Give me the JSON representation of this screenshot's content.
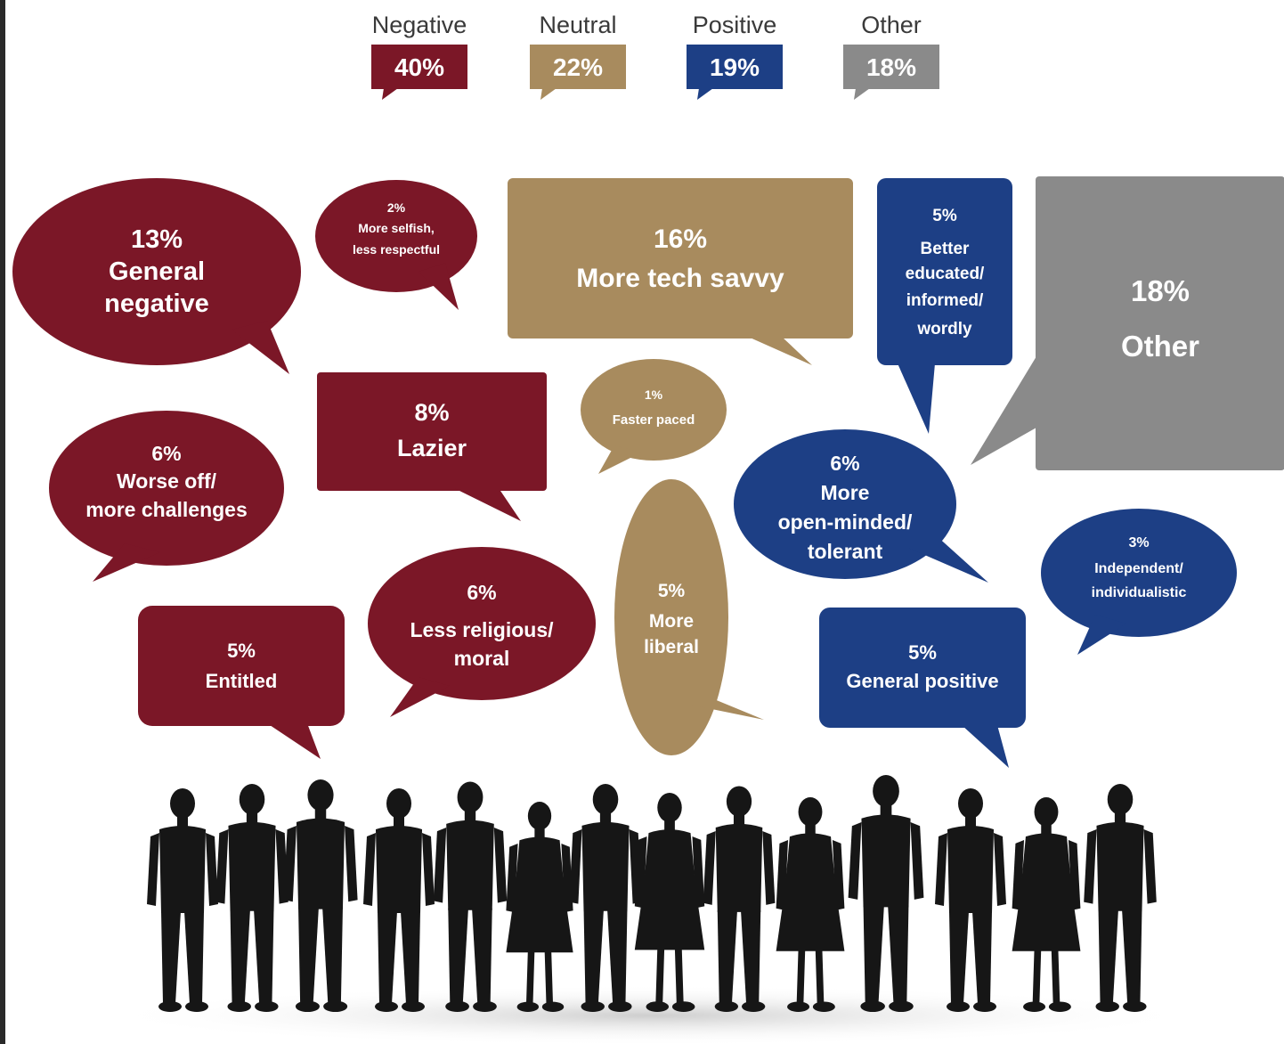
{
  "chart_data": {
    "type": "bubble-infographic",
    "categories": [
      {
        "name": "Negative",
        "value": "40%",
        "color": "#7b1727"
      },
      {
        "name": "Neutral",
        "value": "22%",
        "color": "#a88b5e"
      },
      {
        "name": "Positive",
        "value": "19%",
        "color": "#1d3f85"
      },
      {
        "name": "Other",
        "value": "18%",
        "color": "#8a8a8a"
      }
    ],
    "bubbles": [
      {
        "id": "general-negative",
        "category": "Negative",
        "percent": "13%",
        "lines": [
          "13%",
          "General",
          "negative"
        ]
      },
      {
        "id": "more-selfish",
        "category": "Negative",
        "percent": "2%",
        "lines": [
          "2%",
          "More selfish,",
          "less respectful"
        ]
      },
      {
        "id": "more-tech-savvy",
        "category": "Neutral",
        "percent": "16%",
        "lines": [
          "16%",
          "More tech savvy"
        ]
      },
      {
        "id": "better-educated",
        "category": "Positive",
        "percent": "5%",
        "lines": [
          "5%",
          "Better",
          "educated/",
          "informed/",
          "wordly"
        ]
      },
      {
        "id": "other",
        "category": "Other",
        "percent": "18%",
        "lines": [
          "18%",
          "Other"
        ]
      },
      {
        "id": "lazier",
        "category": "Negative",
        "percent": "8%",
        "lines": [
          "8%",
          "Lazier"
        ]
      },
      {
        "id": "faster-paced",
        "category": "Neutral",
        "percent": "1%",
        "lines": [
          "1%",
          "Faster paced"
        ]
      },
      {
        "id": "worse-off",
        "category": "Negative",
        "percent": "6%",
        "lines": [
          "6%",
          "Worse off/",
          "more challenges"
        ]
      },
      {
        "id": "open-minded",
        "category": "Positive",
        "percent": "6%",
        "lines": [
          "6%",
          "More",
          "open-minded/",
          "tolerant"
        ]
      },
      {
        "id": "independent",
        "category": "Positive",
        "percent": "3%",
        "lines": [
          "3%",
          "Independent/",
          "individualistic"
        ]
      },
      {
        "id": "entitled",
        "category": "Negative",
        "percent": "5%",
        "lines": [
          "5%",
          "Entitled"
        ]
      },
      {
        "id": "less-religious",
        "category": "Negative",
        "percent": "6%",
        "lines": [
          "6%",
          "Less religious/",
          "moral"
        ]
      },
      {
        "id": "more-liberal",
        "category": "Neutral",
        "percent": "5%",
        "lines": [
          "5%",
          "More",
          "liberal"
        ]
      },
      {
        "id": "general-positive",
        "category": "Positive",
        "percent": "5%",
        "lines": [
          "5%",
          "General positive"
        ]
      }
    ]
  }
}
